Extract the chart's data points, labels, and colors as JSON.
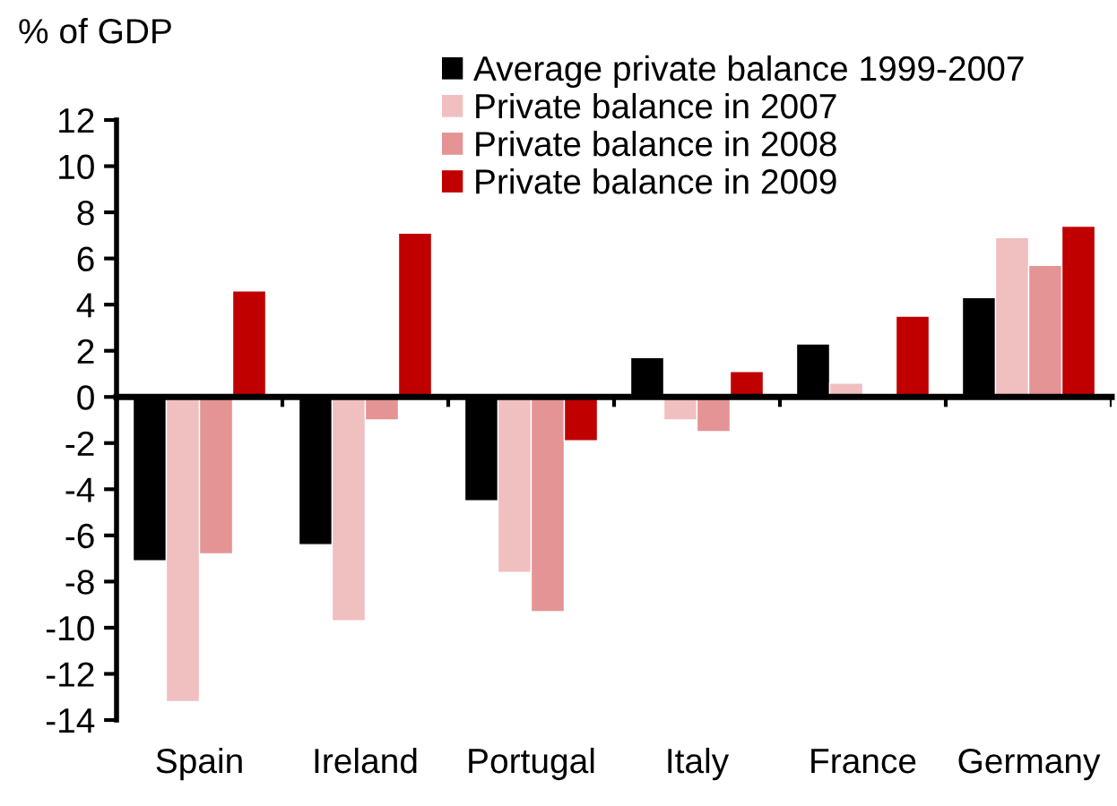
{
  "chart_data": {
    "type": "bar",
    "ylabel": "% of GDP",
    "categories": [
      "Spain",
      "Ireland",
      "Portugal",
      "Italy",
      "France",
      "Germany"
    ],
    "series": [
      {
        "name": "Average private balance 1999-2007",
        "color": "#000000",
        "values": [
          -7.1,
          -6.4,
          -4.5,
          1.7,
          2.3,
          4.3
        ]
      },
      {
        "name": "Private balance in 2007",
        "color": "#f0bfc0",
        "values": [
          -13.2,
          -9.7,
          -7.6,
          -1.0,
          0.6,
          6.9
        ]
      },
      {
        "name": "Private balance in 2008",
        "color": "#e49494",
        "values": [
          -6.8,
          -1.0,
          -9.3,
          -1.5,
          null,
          5.7
        ]
      },
      {
        "name": "Private balance in 2009",
        "color": "#c00000",
        "values": [
          4.6,
          7.1,
          -1.9,
          1.1,
          3.5,
          7.4
        ]
      }
    ],
    "ylim": [
      -14,
      12
    ],
    "yticks": [
      -14,
      -12,
      -10,
      -8,
      -6,
      -4,
      -2,
      0,
      2,
      4,
      6,
      8,
      10,
      12
    ],
    "legend": "top"
  }
}
